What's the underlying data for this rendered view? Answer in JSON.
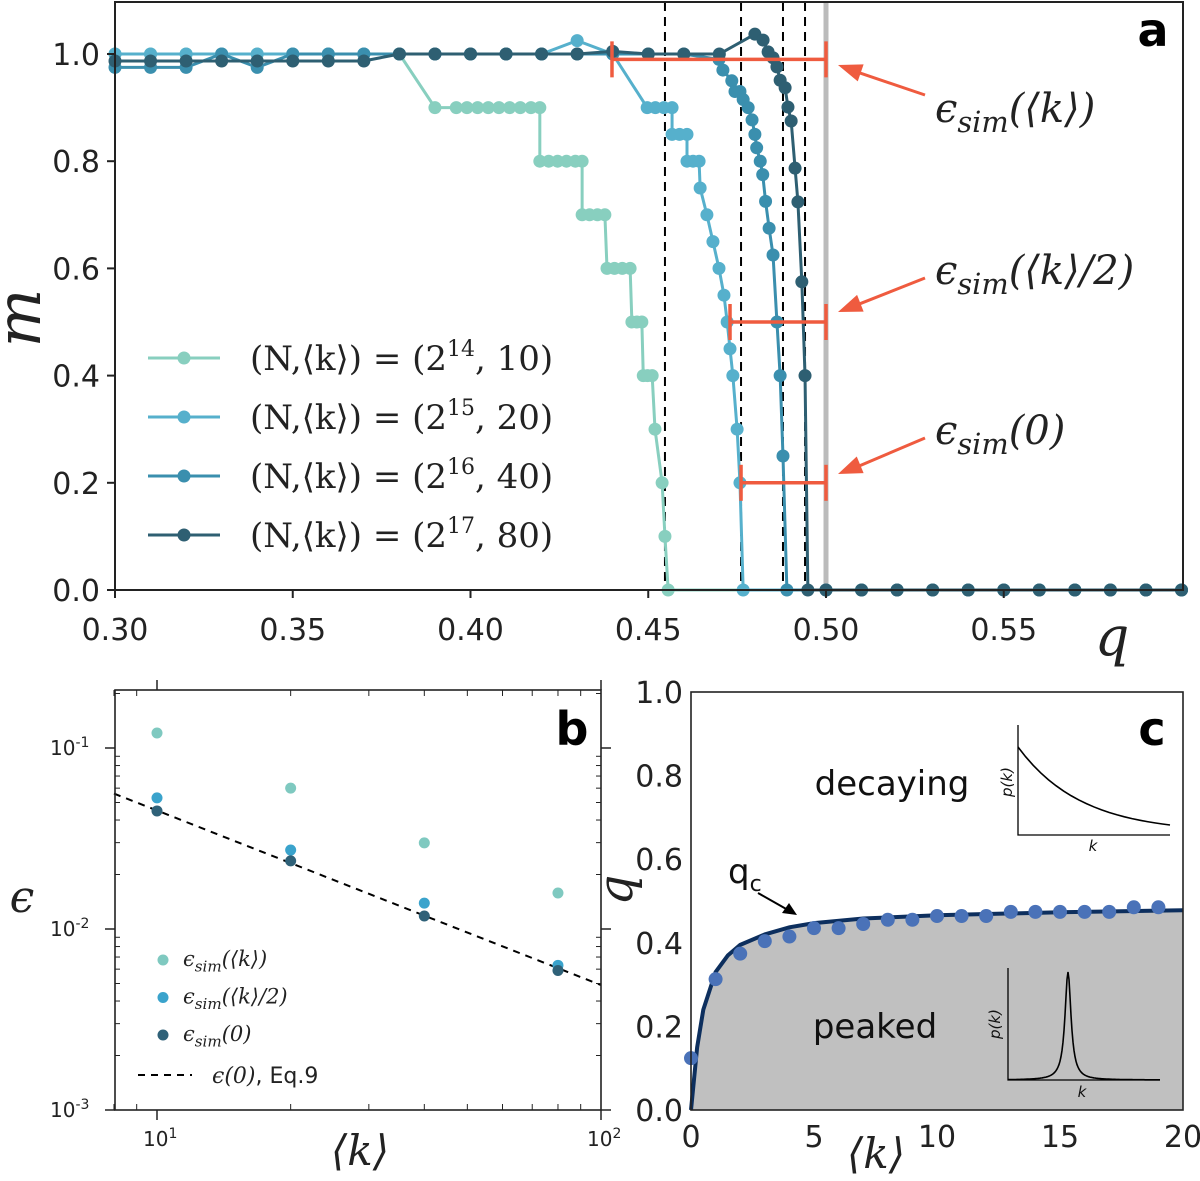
{
  "chart_data": [
    {
      "panel": "a",
      "type": "line",
      "xlabel": "q",
      "ylabel": "m",
      "xlim": [
        0.3,
        0.6
      ],
      "ylim": [
        0.0,
        1.1
      ],
      "xticks": [
        "0.30",
        "0.35",
        "0.40",
        "0.45",
        "0.50",
        "0.55"
      ],
      "yticks": [
        "0.0",
        "0.2",
        "0.4",
        "0.6",
        "0.8",
        "1.0"
      ],
      "legend_position": "lower-left",
      "legend": [
        {
          "prefix": "(N,⟨k⟩) = (2",
          "exp": "14",
          "suffix": ", 10)"
        },
        {
          "prefix": "(N,⟨k⟩) = (2",
          "exp": "15",
          "suffix": ", 20)"
        },
        {
          "prefix": "(N,⟨k⟩) = (2",
          "exp": "16",
          "suffix": ", 40)"
        },
        {
          "prefix": "(N,⟨k⟩) = (2",
          "exp": "17",
          "suffix": ", 80)"
        }
      ],
      "series": [
        {
          "color": "#88cfbf",
          "points": [
            [
              0.3,
              1.0
            ],
            [
              0.31,
              1.0
            ],
            [
              0.32,
              1.0
            ],
            [
              0.33,
              1.0
            ],
            [
              0.34,
              1.0
            ],
            [
              0.35,
              1.0
            ],
            [
              0.36,
              1.0
            ],
            [
              0.37,
              1.0
            ],
            [
              0.38,
              1.0
            ],
            [
              0.39,
              0.9
            ],
            [
              0.396,
              0.9
            ],
            [
              0.399,
              0.9
            ],
            [
              0.402,
              0.9
            ],
            [
              0.405,
              0.9
            ],
            [
              0.408,
              0.9
            ],
            [
              0.411,
              0.9
            ],
            [
              0.414,
              0.9
            ],
            [
              0.417,
              0.9
            ],
            [
              0.4195,
              0.9
            ],
            [
              0.4195,
              0.8
            ],
            [
              0.422,
              0.8
            ],
            [
              0.4245,
              0.8
            ],
            [
              0.427,
              0.8
            ],
            [
              0.4295,
              0.8
            ],
            [
              0.4314,
              0.8
            ],
            [
              0.4314,
              0.7
            ],
            [
              0.4335,
              0.7
            ],
            [
              0.4357,
              0.7
            ],
            [
              0.4378,
              0.7
            ],
            [
              0.4384,
              0.6
            ],
            [
              0.4405,
              0.6
            ],
            [
              0.4427,
              0.6
            ],
            [
              0.4449,
              0.6
            ],
            [
              0.4454,
              0.5
            ],
            [
              0.4468,
              0.5
            ],
            [
              0.4482,
              0.5
            ],
            [
              0.4486,
              0.4
            ],
            [
              0.4498,
              0.4
            ],
            [
              0.4511,
              0.4
            ],
            [
              0.4519,
              0.3
            ],
            [
              0.4539,
              0.2
            ],
            [
              0.4547,
              0.1
            ],
            [
              0.4556,
              0.0
            ],
            [
              0.5,
              0.0
            ],
            [
              0.51,
              0.0
            ],
            [
              0.52,
              0.0
            ],
            [
              0.53,
              0.0
            ],
            [
              0.54,
              0.0
            ],
            [
              0.55,
              0.0
            ],
            [
              0.56,
              0.0
            ],
            [
              0.57,
              0.0
            ],
            [
              0.58,
              0.0
            ],
            [
              0.59,
              0.0
            ],
            [
              0.6,
              0.0
            ]
          ]
        },
        {
          "color": "#56b0cc",
          "points": [
            [
              0.3,
              1.0
            ],
            [
              0.31,
              1.0
            ],
            [
              0.32,
              1.0
            ],
            [
              0.33,
              1.0
            ],
            [
              0.34,
              1.0
            ],
            [
              0.35,
              1.0
            ],
            [
              0.36,
              1.0
            ],
            [
              0.37,
              1.0
            ],
            [
              0.38,
              1.0
            ],
            [
              0.39,
              1.0
            ],
            [
              0.4,
              1.0
            ],
            [
              0.41,
              1.0
            ],
            [
              0.42,
              1.0
            ],
            [
              0.43,
              1.025
            ],
            [
              0.44,
              1.0
            ],
            [
              0.4497,
              0.9
            ],
            [
              0.452,
              0.9
            ],
            [
              0.4544,
              0.9
            ],
            [
              0.4567,
              0.9
            ],
            [
              0.4567,
              0.85
            ],
            [
              0.4588,
              0.85
            ],
            [
              0.4609,
              0.85
            ],
            [
              0.4609,
              0.8
            ],
            [
              0.4626,
              0.8
            ],
            [
              0.4643,
              0.8
            ],
            [
              0.4646,
              0.75
            ],
            [
              0.4665,
              0.7
            ],
            [
              0.4682,
              0.65
            ],
            [
              0.4699,
              0.6
            ],
            [
              0.4713,
              0.55
            ],
            [
              0.4722,
              0.5
            ],
            [
              0.473,
              0.45
            ],
            [
              0.4738,
              0.4
            ],
            [
              0.475,
              0.3
            ],
            [
              0.4758,
              0.2
            ],
            [
              0.4767,
              0.0
            ],
            [
              0.5,
              0.0
            ],
            [
              0.51,
              0.0
            ],
            [
              0.52,
              0.0
            ],
            [
              0.53,
              0.0
            ],
            [
              0.54,
              0.0
            ],
            [
              0.55,
              0.0
            ],
            [
              0.56,
              0.0
            ],
            [
              0.57,
              0.0
            ],
            [
              0.58,
              0.0
            ],
            [
              0.59,
              0.0
            ],
            [
              0.6,
              0.0
            ]
          ]
        },
        {
          "color": "#3a8fae",
          "points": [
            [
              0.3,
              0.975
            ],
            [
              0.31,
              0.975
            ],
            [
              0.32,
              0.975
            ],
            [
              0.33,
              1.0
            ],
            [
              0.34,
              0.975
            ],
            [
              0.35,
              1.0
            ],
            [
              0.36,
              1.0
            ],
            [
              0.37,
              1.0
            ],
            [
              0.38,
              1.0
            ],
            [
              0.39,
              1.0
            ],
            [
              0.4,
              1.0
            ],
            [
              0.41,
              1.0
            ],
            [
              0.42,
              1.0
            ],
            [
              0.43,
              1.0
            ],
            [
              0.44,
              1.0
            ],
            [
              0.45,
              1.0
            ],
            [
              0.46,
              1.0
            ],
            [
              0.4699,
              0.99
            ],
            [
              0.471,
              0.97
            ],
            [
              0.4735,
              0.95
            ],
            [
              0.4744,
              0.93
            ],
            [
              0.4758,
              0.93
            ],
            [
              0.4767,
              0.915
            ],
            [
              0.4781,
              0.9
            ],
            [
              0.4792,
              0.877
            ],
            [
              0.48,
              0.85
            ],
            [
              0.4805,
              0.825
            ],
            [
              0.4815,
              0.8
            ],
            [
              0.4822,
              0.775
            ],
            [
              0.483,
              0.725
            ],
            [
              0.484,
              0.675
            ],
            [
              0.4851,
              0.625
            ],
            [
              0.4862,
              0.5
            ],
            [
              0.4871,
              0.4
            ],
            [
              0.4879,
              0.25
            ],
            [
              0.489,
              0.0
            ],
            [
              0.5,
              0.0
            ],
            [
              0.51,
              0.0
            ],
            [
              0.52,
              0.0
            ],
            [
              0.53,
              0.0
            ],
            [
              0.54,
              0.0
            ],
            [
              0.55,
              0.0
            ],
            [
              0.56,
              0.0
            ],
            [
              0.57,
              0.0
            ],
            [
              0.58,
              0.0
            ],
            [
              0.59,
              0.0
            ],
            [
              0.6,
              0.0
            ]
          ]
        },
        {
          "color": "#2e5f72",
          "points": [
            [
              0.3,
              0.987
            ],
            [
              0.31,
              0.987
            ],
            [
              0.32,
              0.987
            ],
            [
              0.33,
              0.987
            ],
            [
              0.34,
              0.987
            ],
            [
              0.35,
              0.987
            ],
            [
              0.36,
              0.987
            ],
            [
              0.37,
              0.987
            ],
            [
              0.38,
              1.0
            ],
            [
              0.39,
              1.0
            ],
            [
              0.4,
              1.0
            ],
            [
              0.41,
              1.0
            ],
            [
              0.42,
              1.0
            ],
            [
              0.43,
              1.0
            ],
            [
              0.44,
              1.005
            ],
            [
              0.45,
              1.0
            ],
            [
              0.46,
              1.0
            ],
            [
              0.47,
              1.0
            ],
            [
              0.48,
              1.037
            ],
            [
              0.4823,
              1.026
            ],
            [
              0.4837,
              1.004
            ],
            [
              0.4851,
              0.993
            ],
            [
              0.4862,
              0.976
            ],
            [
              0.4871,
              0.951
            ],
            [
              0.4885,
              0.937
            ],
            [
              0.4893,
              0.901
            ],
            [
              0.4902,
              0.875
            ],
            [
              0.4913,
              0.787
            ],
            [
              0.4921,
              0.724
            ],
            [
              0.4932,
              0.575
            ],
            [
              0.4941,
              0.4
            ],
            [
              0.4949,
              0.0
            ],
            [
              0.5,
              0.0
            ],
            [
              0.51,
              0.0
            ],
            [
              0.52,
              0.0
            ],
            [
              0.53,
              0.0
            ],
            [
              0.54,
              0.0
            ],
            [
              0.55,
              0.0
            ],
            [
              0.56,
              0.0
            ],
            [
              0.57,
              0.0
            ],
            [
              0.58,
              0.0
            ],
            [
              0.59,
              0.0
            ],
            [
              0.6,
              0.0
            ]
          ]
        }
      ],
      "vertical_dashed_lines_q": [
        0.4547,
        0.4761,
        0.4879,
        0.4941
      ],
      "vertical_gray_line_q": 0.5,
      "error_bars": [
        {
          "m": 0.99,
          "q_from": 0.4398,
          "q_to": 0.5,
          "label": {
            "sym": "ϵ",
            "sub": "sim",
            "arg": "(⟨k⟩)"
          }
        },
        {
          "m": 0.5,
          "q_from": 0.473,
          "q_to": 0.5,
          "label": {
            "sym": "ϵ",
            "sub": "sim",
            "arg": "(⟨k⟩/2)"
          }
        },
        {
          "m": 0.2,
          "q_from": 0.4761,
          "q_to": 0.5,
          "label": {
            "sym": "ϵ",
            "sub": "sim",
            "arg": "(0)"
          }
        }
      ],
      "error_bar_color": "#ef5b3f"
    },
    {
      "panel": "b",
      "type": "scatter",
      "xlabel": "⟨k⟩",
      "ylabel": "ϵ",
      "xscale": "log",
      "yscale": "log",
      "xlim": [
        8,
        100
      ],
      "ylim": [
        0.001,
        0.2
      ],
      "xticks": [
        {
          "base": "10",
          "exp": "1"
        },
        {
          "base": "10",
          "exp": "2"
        }
      ],
      "yticks": [
        {
          "base": "10",
          "exp": "-1"
        },
        {
          "base": "10",
          "exp": "-2"
        },
        {
          "base": "10",
          "exp": "-3"
        }
      ],
      "legend_position": "lower-left",
      "x": [
        10,
        20,
        40,
        80
      ],
      "series": [
        {
          "label": {
            "sym": "ϵ",
            "sub": "sim",
            "arg": "(⟨k⟩)"
          },
          "color": "#7fc9c0",
          "values": [
            0.121,
            0.06,
            0.0299,
            0.0158
          ]
        },
        {
          "label": {
            "sym": "ϵ",
            "sub": "sim",
            "arg": "(⟨k⟩/2)"
          },
          "color": "#3aa3cc",
          "values": [
            0.053,
            0.0273,
            0.0139,
            0.0063
          ]
        },
        {
          "label": {
            "sym": "ϵ",
            "sub": "sim",
            "arg": "(0)"
          },
          "color": "#2f6178",
          "values": [
            0.0449,
            0.0238,
            0.0118,
            0.0059
          ]
        }
      ],
      "line": {
        "label": {
          "math": "ϵ(0)",
          "text": ", Eq.9"
        },
        "color": "#000000",
        "style": "dashed",
        "points": [
          [
            8,
            0.056
          ],
          [
            100,
            0.0049
          ]
        ]
      }
    },
    {
      "panel": "c",
      "type": "scatter",
      "xlabel": "⟨k⟩",
      "ylabel": "q",
      "xlim": [
        0,
        20
      ],
      "ylim": [
        0.0,
        1.0
      ],
      "xticks": [
        "0",
        "5",
        "10",
        "15",
        "20"
      ],
      "yticks": [
        "0.0",
        "0.2",
        "0.4",
        "0.6",
        "0.8",
        "1.0"
      ],
      "points_color": "#4a72b8",
      "curve_color": "#0d2f5e",
      "fill_color": "#c0c0c0",
      "x": [
        0,
        1,
        2,
        3,
        4,
        5,
        6,
        7,
        8,
        9,
        10,
        11,
        12,
        13,
        14,
        15,
        16,
        17,
        18,
        19
      ],
      "values": [
        0.124,
        0.313,
        0.374,
        0.404,
        0.415,
        0.435,
        0.435,
        0.445,
        0.455,
        0.455,
        0.464,
        0.464,
        0.464,
        0.474,
        0.474,
        0.474,
        0.474,
        0.474,
        0.485,
        0.485
      ],
      "curve": [
        [
          0,
          0
        ],
        [
          0.25,
          0.15
        ],
        [
          0.5,
          0.24
        ],
        [
          1,
          0.33
        ],
        [
          1.5,
          0.37
        ],
        [
          2,
          0.395
        ],
        [
          3,
          0.42
        ],
        [
          4,
          0.437
        ],
        [
          5,
          0.447
        ],
        [
          7,
          0.458
        ],
        [
          10,
          0.466
        ],
        [
          15,
          0.473
        ],
        [
          20,
          0.478
        ]
      ],
      "curve_label": {
        "main": "q",
        "sub": "c"
      },
      "region_labels": {
        "upper": "decaying",
        "lower": "peaked"
      },
      "insets": {
        "ylabel": "p(k)",
        "xlabel": "k"
      }
    }
  ],
  "panel_labels": {
    "a": "a",
    "b": "b",
    "c": "c"
  }
}
